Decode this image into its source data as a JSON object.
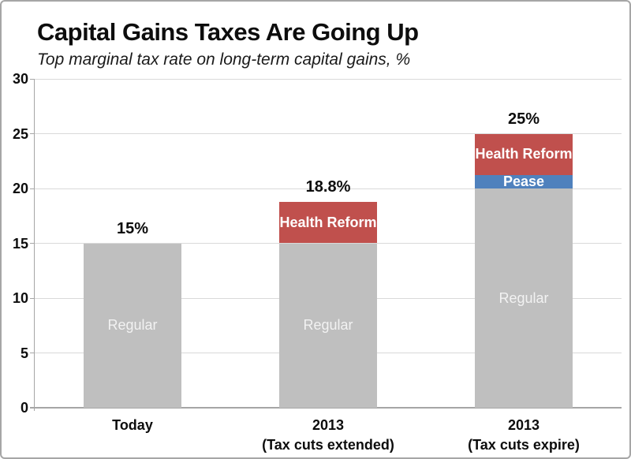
{
  "window": {
    "background": "#ffffff",
    "border_color": "#a6a6a6"
  },
  "chart_data": {
    "type": "bar",
    "stacked": true,
    "title": "Capital Gains Taxes Are Going Up",
    "subtitle": "Top marginal tax rate on long-term capital gains, %",
    "ylabel": "",
    "xlabel": "",
    "ylim": [
      0,
      30
    ],
    "yticks": [
      0,
      5,
      10,
      15,
      20,
      25,
      30
    ],
    "grid": true,
    "legend_position": "none (series labeled inside segments)",
    "gridline_color": "#d9d9d9",
    "axis_color": "#a6a6a6",
    "text_color": "#0d0d0d",
    "categories": [
      [
        "Today"
      ],
      [
        "2013",
        "(Tax cuts extended)"
      ],
      [
        "2013",
        "(Tax cuts expire)"
      ]
    ],
    "series": [
      {
        "name": "Regular",
        "color": "#bfbfbf",
        "label_color": "#f2f2f2",
        "label_style": "normal",
        "values": [
          15,
          15,
          20
        ]
      },
      {
        "name": "Pease",
        "color": "#4f81bd",
        "label_color": "#ffffff",
        "label_style": "bold",
        "values": [
          0,
          0,
          1.2
        ]
      },
      {
        "name": "Health Reform",
        "color": "#c0504d",
        "label_color": "#ffffff",
        "label_style": "bold",
        "values": [
          0,
          3.8,
          3.8
        ]
      }
    ],
    "bar_totals": [
      "15%",
      "18.8%",
      "25%"
    ],
    "bar_total_values": [
      15,
      18.8,
      25
    ]
  }
}
